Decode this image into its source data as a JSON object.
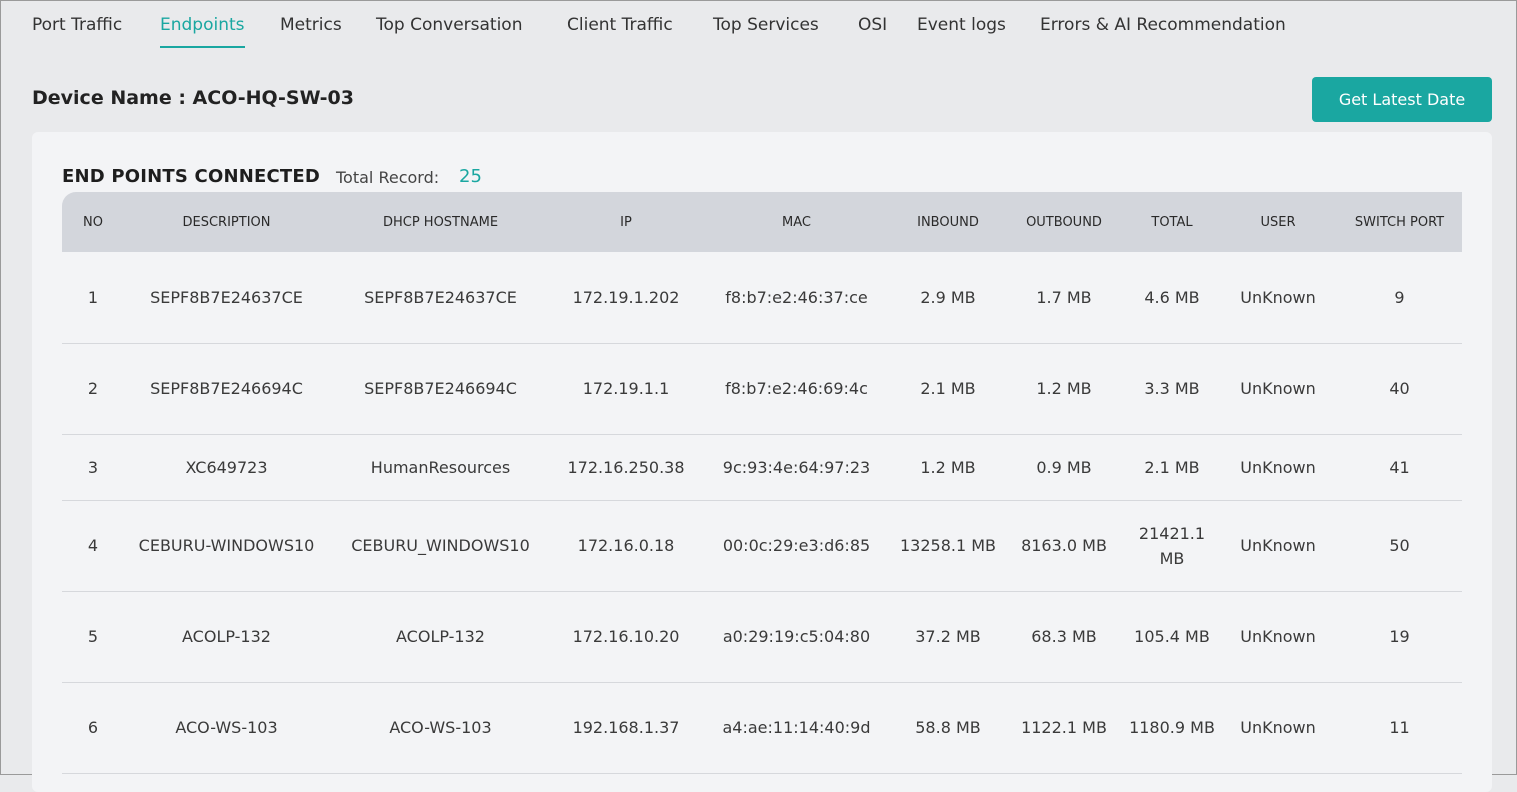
{
  "tabs": [
    {
      "label": "Port Traffic",
      "active": false
    },
    {
      "label": "Endpoints",
      "active": true
    },
    {
      "label": "Metrics",
      "active": false
    },
    {
      "label": "Top Conversation",
      "active": false
    },
    {
      "label": "Client Traffic",
      "active": false
    },
    {
      "label": "Top Services",
      "active": false
    },
    {
      "label": "OSI",
      "active": false
    },
    {
      "label": "Event logs",
      "active": false
    },
    {
      "label": "Errors & AI Recommendation",
      "active": false
    }
  ],
  "device": {
    "title": "Device Name : ACO-HQ-SW-03"
  },
  "actions": {
    "latest_label": "Get Latest Date"
  },
  "panel": {
    "title": "END POINTS CONNECTED",
    "record_label": "Total Record:",
    "record_count": "25"
  },
  "table": {
    "columns": [
      "NO",
      "DESCRIPTION",
      "DHCP HOSTNAME",
      "IP",
      "MAC",
      "INBOUND",
      "OUTBOUND",
      "TOTAL",
      "USER",
      "SWITCH PORT"
    ],
    "rows": [
      [
        "1",
        "SEPF8B7E24637CE",
        "SEPF8B7E24637CE",
        "172.19.1.202",
        "f8:b7:e2:46:37:ce",
        "2.9 MB",
        "1.7 MB",
        "4.6 MB",
        "UnKnown",
        "9"
      ],
      [
        "2",
        "SEPF8B7E246694C",
        "SEPF8B7E246694C",
        "172.19.1.1",
        "f8:b7:e2:46:69:4c",
        "2.1 MB",
        "1.2 MB",
        "3.3 MB",
        "UnKnown",
        "40"
      ],
      [
        "3",
        "XC649723",
        "HumanResources",
        "172.16.250.38",
        "9c:93:4e:64:97:23",
        "1.2 MB",
        "0.9 MB",
        "2.1 MB",
        "UnKnown",
        "41"
      ],
      [
        "4",
        "CEBURU-WINDOWS10",
        "CEBURU_WINDOWS10",
        "172.16.0.18",
        "00:0c:29:e3:d6:85",
        "13258.1 MB",
        "8163.0 MB",
        "21421.1 MB",
        "UnKnown",
        "50"
      ],
      [
        "5",
        "ACOLP-132",
        "ACOLP-132",
        "172.16.10.20",
        "a0:29:19:c5:04:80",
        "37.2 MB",
        "68.3 MB",
        "105.4 MB",
        "UnKnown",
        "19"
      ],
      [
        "6",
        "ACO-WS-103",
        "ACO-WS-103",
        "192.168.1.37",
        "a4:ae:11:14:40:9d",
        "58.8 MB",
        "1122.1 MB",
        "1180.9 MB",
        "UnKnown",
        "11"
      ]
    ]
  }
}
